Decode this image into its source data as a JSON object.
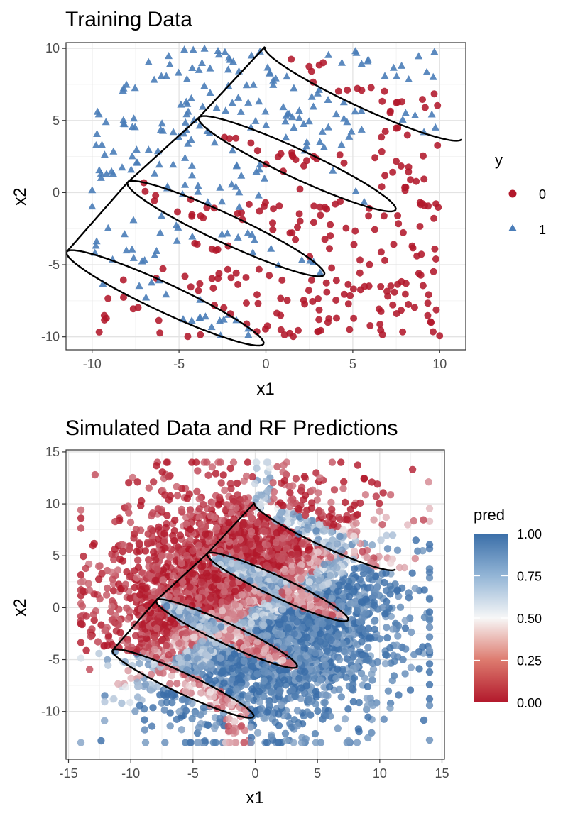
{
  "chart_data": [
    {
      "type": "scatter",
      "title": "Training Data",
      "xlabel": "x1",
      "ylabel": "x2",
      "xlim": [
        -11.5,
        11.5
      ],
      "ylim": [
        -10.9,
        10.4
      ],
      "x_ticks": [
        -10,
        -5,
        0,
        5,
        10
      ],
      "y_ticks": [
        -10,
        -5,
        0,
        5,
        10
      ],
      "grid": true,
      "legend": {
        "title": "y",
        "position": "right",
        "entries": [
          {
            "label": "0",
            "shape": "circle",
            "color": "#b2182b"
          },
          {
            "label": "1",
            "shape": "triangle",
            "color": "#4a7db8"
          }
        ]
      },
      "colors": {
        "class0": "#b2182b",
        "class1": "#4a7db8"
      },
      "n_points": 500,
      "boundary": "zigzag ellipses (black curve) separating class 1 (upper-left) from class 0 (lower-right)"
    },
    {
      "type": "scatter",
      "title": "Simulated Data and RF Predictions",
      "xlabel": "x1",
      "ylabel": "x2",
      "xlim": [
        -15.2,
        15.2
      ],
      "ylim": [
        -14.6,
        15.2
      ],
      "x_ticks": [
        -15,
        -10,
        -5,
        0,
        5,
        10,
        15
      ],
      "y_ticks": [
        -10,
        -5,
        0,
        5,
        10,
        15
      ],
      "grid": true,
      "legend": {
        "title": "pred",
        "position": "right",
        "type": "colorbar",
        "ticks": [
          "1.00",
          "0.75",
          "0.50",
          "0.25",
          "0.00"
        ]
      },
      "colors": {
        "low": "#b2182b",
        "mid": "#f7f7f7",
        "high": "#3a6ea8"
      },
      "n_points": 5000
    }
  ]
}
